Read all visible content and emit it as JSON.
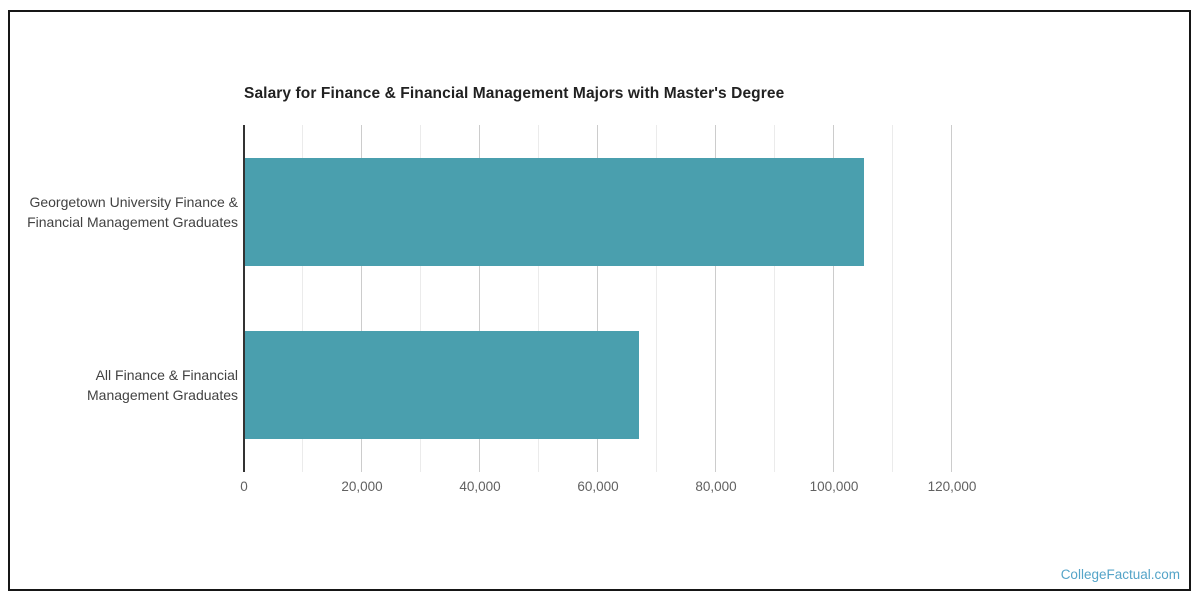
{
  "page": {
    "watermark": "CollegeFactual.com"
  },
  "colors": {
    "frame_border": "#161616",
    "title_text": "#212121",
    "category_text": "#424242",
    "tick_text": "#616161",
    "axis_line": "#333333",
    "gridline_major": "#cccccc",
    "gridline_minor": "#ebebeb",
    "bar": "#4a9fae",
    "watermark_text": "#54a4c8"
  },
  "chart_data": {
    "type": "bar",
    "orientation": "horizontal",
    "title": "Salary for Finance & Financial Management Majors with Master's Degree",
    "xlabel": "",
    "ylabel": "",
    "categories": [
      {
        "lines": [
          "Georgetown University Finance &",
          "Financial Management Graduates"
        ]
      },
      {
        "lines": [
          "All Finance & Financial",
          "Management Graduates"
        ]
      }
    ],
    "values": [
      104900,
      66800
    ],
    "xlim": [
      0,
      120000
    ],
    "x_major_ticks": [
      0,
      20000,
      40000,
      60000,
      80000,
      100000,
      120000
    ],
    "x_major_tick_labels": [
      "0",
      "20,000",
      "40,000",
      "60,000",
      "80,000",
      "100,000",
      "120,000"
    ],
    "x_minor_gridline_step": 10000,
    "grid": "vertical-only",
    "legend": "none",
    "bar_color": "#4a9fae"
  }
}
